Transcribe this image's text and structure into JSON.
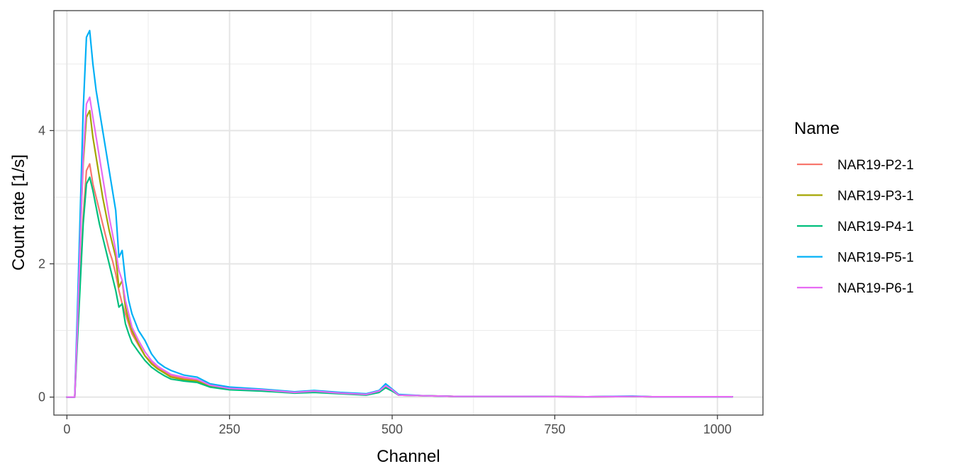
{
  "chart_data": {
    "type": "line",
    "xlabel": "Channel",
    "ylabel": "Count rate [1/s]",
    "xlim": [
      -20,
      1070
    ],
    "ylim": [
      -0.27,
      5.8
    ],
    "x_ticks": [
      0,
      250,
      500,
      750,
      1000
    ],
    "x_tick_labels": [
      "0",
      "250",
      "500",
      "750",
      "1000"
    ],
    "y_ticks": [
      0,
      2,
      4
    ],
    "y_tick_labels": [
      "0",
      "2",
      "4"
    ],
    "x_minor_ticks": [
      125,
      375,
      625,
      875
    ],
    "y_minor_ticks": [
      1,
      3,
      5
    ],
    "grid": true,
    "legend": {
      "title": "Name",
      "position": "right"
    },
    "x": [
      0,
      12,
      16,
      20,
      25,
      30,
      35,
      40,
      45,
      50,
      55,
      60,
      65,
      70,
      75,
      80,
      85,
      90,
      95,
      100,
      110,
      120,
      130,
      140,
      150,
      160,
      180,
      200,
      220,
      250,
      300,
      350,
      380,
      420,
      460,
      480,
      490,
      500,
      510,
      550,
      600,
      700,
      800,
      870,
      900,
      1000,
      1023
    ],
    "series": [
      {
        "name": "NAR19-P2-1",
        "color": "#F8766D",
        "values": [
          0,
          0,
          0.9,
          1.7,
          2.7,
          3.4,
          3.5,
          3.2,
          3.0,
          2.8,
          2.6,
          2.4,
          2.2,
          2.05,
          1.85,
          1.6,
          1.4,
          1.25,
          1.1,
          0.95,
          0.78,
          0.62,
          0.52,
          0.45,
          0.38,
          0.32,
          0.28,
          0.25,
          0.18,
          0.13,
          0.11,
          0.07,
          0.08,
          0.06,
          0.04,
          0.08,
          0.15,
          0.1,
          0.03,
          0.02,
          0.01,
          0.01,
          0.005,
          0.01,
          0.005,
          0.005,
          0.005
        ]
      },
      {
        "name": "NAR19-P3-1",
        "color": "#A3A500",
        "values": [
          0,
          0,
          1.1,
          2.3,
          3.5,
          4.2,
          4.3,
          3.9,
          3.6,
          3.3,
          3.0,
          2.75,
          2.5,
          2.3,
          2.1,
          1.65,
          1.75,
          1.35,
          1.15,
          1.0,
          0.8,
          0.62,
          0.5,
          0.42,
          0.36,
          0.3,
          0.26,
          0.24,
          0.17,
          0.12,
          0.1,
          0.07,
          0.08,
          0.06,
          0.04,
          0.08,
          0.15,
          0.1,
          0.03,
          0.02,
          0.01,
          0.01,
          0.005,
          0.01,
          0.005,
          0.005,
          0.005
        ]
      },
      {
        "name": "NAR19-P4-1",
        "color": "#00BF7D",
        "values": [
          0,
          0,
          0.8,
          1.6,
          2.6,
          3.2,
          3.3,
          3.1,
          2.85,
          2.6,
          2.4,
          2.2,
          2.0,
          1.8,
          1.6,
          1.35,
          1.4,
          1.1,
          0.95,
          0.82,
          0.68,
          0.55,
          0.45,
          0.38,
          0.32,
          0.27,
          0.24,
          0.22,
          0.15,
          0.11,
          0.09,
          0.06,
          0.07,
          0.05,
          0.03,
          0.07,
          0.14,
          0.09,
          0.03,
          0.02,
          0.01,
          0.01,
          0.005,
          0.01,
          0.005,
          0.005,
          0.005
        ]
      },
      {
        "name": "NAR19-P5-1",
        "color": "#00B0F6",
        "values": [
          0,
          0,
          1.25,
          2.6,
          4.3,
          5.4,
          5.5,
          5.0,
          4.6,
          4.3,
          4.0,
          3.7,
          3.4,
          3.1,
          2.8,
          2.1,
          2.2,
          1.75,
          1.45,
          1.25,
          1.0,
          0.85,
          0.65,
          0.52,
          0.45,
          0.4,
          0.33,
          0.3,
          0.2,
          0.15,
          0.12,
          0.08,
          0.1,
          0.07,
          0.05,
          0.1,
          0.2,
          0.12,
          0.04,
          0.02,
          0.01,
          0.01,
          0.005,
          0.015,
          0.005,
          0.005,
          0.005
        ]
      },
      {
        "name": "NAR19-P6-1",
        "color": "#E76BF3",
        "values": [
          0,
          0,
          1.0,
          2.2,
          3.6,
          4.4,
          4.5,
          4.2,
          3.9,
          3.6,
          3.3,
          3.0,
          2.7,
          2.45,
          2.2,
          1.9,
          1.75,
          1.45,
          1.25,
          1.05,
          0.85,
          0.68,
          0.55,
          0.46,
          0.4,
          0.34,
          0.3,
          0.27,
          0.18,
          0.13,
          0.11,
          0.07,
          0.09,
          0.06,
          0.04,
          0.09,
          0.17,
          0.11,
          0.03,
          0.02,
          0.01,
          0.01,
          0.005,
          0.01,
          0.005,
          0.005,
          0.005
        ]
      }
    ]
  }
}
